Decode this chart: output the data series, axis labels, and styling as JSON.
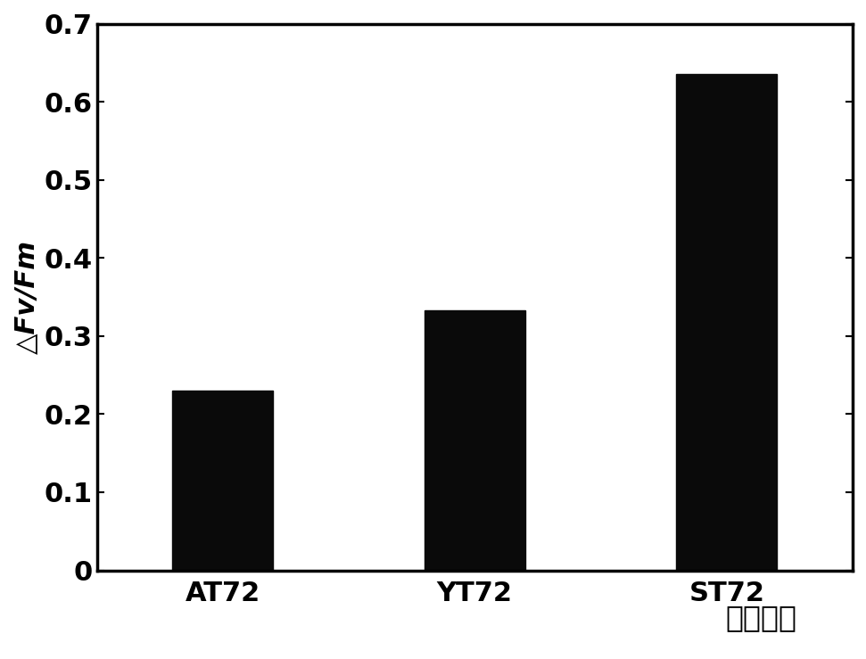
{
  "categories": [
    "AT72",
    "YT72",
    "ST72"
  ],
  "values": [
    0.23,
    0.333,
    0.635
  ],
  "bar_color": "#0a0a0a",
  "ylabel": "△Fv/Fm",
  "xlabel": "处理编号",
  "ylim": [
    0,
    0.7
  ],
  "yticks": [
    0,
    0.1,
    0.2,
    0.3,
    0.4,
    0.5,
    0.6,
    0.7
  ],
  "ytick_labels": [
    "0",
    "0.1",
    "0.2",
    "0.3",
    "0.4",
    "0.5",
    "0.6",
    "0.7"
  ],
  "bar_width": 0.4,
  "background_color": "#ffffff",
  "ylabel_fontsize": 22,
  "xlabel_fontsize": 24,
  "tick_fontsize": 22,
  "xtick_fontsize": 22,
  "spine_linewidth": 2.0,
  "border_linewidth": 2.5
}
